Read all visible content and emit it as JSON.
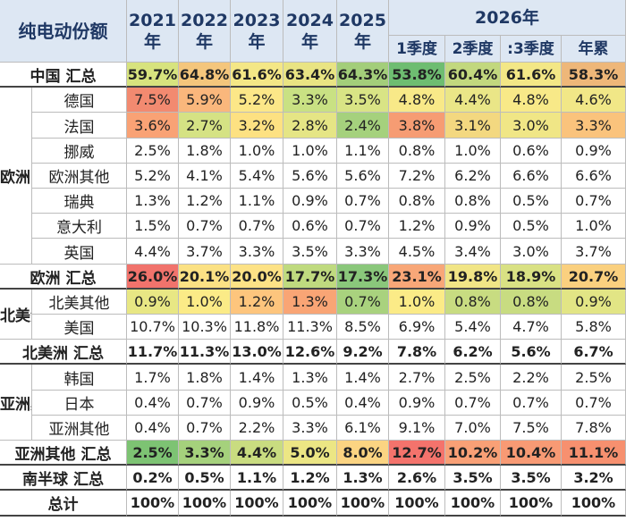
{
  "chart_data": {
    "type": "table",
    "title": "纯电动份额",
    "columns": [
      "2021年",
      "2022年",
      "2023年",
      "2024年",
      "2025年",
      "2026年 1季度",
      "2026年 2季度",
      "2026年 :3季度",
      "2026年 年累"
    ],
    "header": {
      "corner": "纯电动份额",
      "years": [
        {
          "y": "2021",
          "s": "年"
        },
        {
          "y": "2022",
          "s": "年"
        },
        {
          "y": "2023",
          "s": "年"
        },
        {
          "y": "2024",
          "s": "年"
        },
        {
          "y": "2025",
          "s": "年"
        }
      ],
      "year2026": "2026年",
      "quarters": [
        "1季度",
        "2季度",
        ":3季度",
        "年累"
      ]
    },
    "groups": [
      "欧洲",
      "北美洲",
      "亚洲其"
    ],
    "rows": [
      {
        "label": "中国 汇总",
        "kind": "total",
        "values": [
          "59.7%",
          "64.8%",
          "61.6%",
          "63.4%",
          "64.3%",
          "53.8%",
          "60.4%",
          "61.6%",
          "58.3%"
        ],
        "colors": [
          "#d7e37e",
          "#f4c67c",
          "#f4e786",
          "#e9e483",
          "#a3ce7a",
          "#6ebd71",
          "#c2d87e",
          "#f3e786",
          "#eeb779"
        ]
      },
      {
        "label": "德国",
        "kind": "item",
        "values": [
          "7.5%",
          "5.9%",
          "5.2%",
          "3.3%",
          "3.5%",
          "4.8%",
          "4.4%",
          "4.8%",
          "4.6%"
        ],
        "colors": [
          "#f28a70",
          "#fab77c",
          "#fce788",
          "#c9e183",
          "#d9e485",
          "#f8e988",
          "#eae687",
          "#f8e988",
          "#f1e787"
        ]
      },
      {
        "label": "法国",
        "kind": "item",
        "values": [
          "3.6%",
          "2.7%",
          "3.2%",
          "2.8%",
          "2.4%",
          "3.8%",
          "3.1%",
          "3.0%",
          "3.3%"
        ],
        "colors": [
          "#f9a275",
          "#d5e284",
          "#fde182",
          "#e5e585",
          "#a5d17d",
          "#f69c73",
          "#f3d880",
          "#f0e686",
          "#fac37c"
        ]
      },
      {
        "label": "挪威",
        "kind": "item",
        "values": [
          "2.5%",
          "1.8%",
          "1.0%",
          "1.0%",
          "1.1%",
          "0.8%",
          "1.0%",
          "0.6%",
          "0.9%"
        ],
        "colors": []
      },
      {
        "label": "欧洲其他",
        "kind": "item",
        "values": [
          "5.2%",
          "4.1%",
          "5.4%",
          "5.6%",
          "5.6%",
          "7.2%",
          "6.2%",
          "6.6%",
          "6.6%"
        ],
        "colors": []
      },
      {
        "label": "瑞典",
        "kind": "item",
        "values": [
          "1.3%",
          "1.2%",
          "1.1%",
          "0.9%",
          "0.7%",
          "0.8%",
          "0.8%",
          "0.5%",
          "0.7%"
        ],
        "colors": []
      },
      {
        "label": "意大利",
        "kind": "item",
        "values": [
          "1.5%",
          "0.7%",
          "0.7%",
          "0.6%",
          "0.7%",
          "1.2%",
          "0.9%",
          "0.5%",
          "1.0%"
        ],
        "colors": []
      },
      {
        "label": "英国",
        "kind": "item",
        "values": [
          "4.4%",
          "3.7%",
          "3.3%",
          "3.5%",
          "3.3%",
          "4.5%",
          "3.4%",
          "3.0%",
          "3.7%"
        ],
        "colors": []
      },
      {
        "label": "欧洲 汇总",
        "kind": "total",
        "values": [
          "26.0%",
          "20.1%",
          "20.0%",
          "17.7%",
          "17.3%",
          "23.1%",
          "19.8%",
          "18.9%",
          "20.7%"
        ],
        "colors": [
          "#f1736c",
          "#fbe184",
          "#fde286",
          "#bfda7f",
          "#8ac77b",
          "#f8a778",
          "#f1e586",
          "#d9e184",
          "#fad07f"
        ]
      },
      {
        "label": "北美其他",
        "kind": "item",
        "values": [
          "0.9%",
          "1.0%",
          "1.2%",
          "1.3%",
          "0.7%",
          "1.0%",
          "0.8%",
          "0.8%",
          "0.9%"
        ],
        "colors": [
          "#e8e784",
          "#fbeb87",
          "#fdc57d",
          "#f9a575",
          "#a9d27e",
          "#fbeb87",
          "#c8dc81",
          "#c8dc81",
          "#e2e585"
        ]
      },
      {
        "label": "美国",
        "kind": "item",
        "values": [
          "10.7%",
          "10.3%",
          "11.8%",
          "11.3%",
          "8.5%",
          "6.9%",
          "5.4%",
          "4.7%",
          "5.8%"
        ],
        "colors": []
      },
      {
        "label": "北美洲 汇总",
        "kind": "total",
        "values": [
          "11.7%",
          "11.3%",
          "13.0%",
          "12.6%",
          "9.2%",
          "7.8%",
          "6.2%",
          "5.6%",
          "6.7%"
        ],
        "colors": []
      },
      {
        "label": "韩国",
        "kind": "item",
        "values": [
          "1.7%",
          "1.8%",
          "1.4%",
          "1.3%",
          "1.4%",
          "2.7%",
          "2.5%",
          "2.2%",
          "2.5%"
        ],
        "colors": []
      },
      {
        "label": "日本",
        "kind": "item",
        "values": [
          "0.4%",
          "0.7%",
          "0.9%",
          "0.5%",
          "0.4%",
          "0.9%",
          "0.7%",
          "0.7%",
          "0.7%"
        ],
        "colors": []
      },
      {
        "label": "亚洲其他",
        "kind": "item",
        "values": [
          "0.4%",
          "0.7%",
          "2.2%",
          "3.3%",
          "6.1%",
          "9.1%",
          "7.0%",
          "7.5%",
          "7.8%"
        ],
        "colors": []
      },
      {
        "label": "亚洲其他 汇总",
        "kind": "total",
        "values": [
          "2.5%",
          "3.3%",
          "4.4%",
          "5.0%",
          "8.0%",
          "12.7%",
          "10.2%",
          "10.4%",
          "11.1%"
        ],
        "colors": [
          "#7dc373",
          "#a5d17c",
          "#c9dc80",
          "#ece684",
          "#fbd482",
          "#f4736c",
          "#f9a076",
          "#f89a74",
          "#f7906f"
        ]
      },
      {
        "label": "南半球 汇总",
        "kind": "total",
        "values": [
          "0.2%",
          "0.5%",
          "1.1%",
          "1.2%",
          "1.3%",
          "2.6%",
          "3.5%",
          "3.5%",
          "3.2%"
        ],
        "colors": []
      },
      {
        "label": "总计",
        "kind": "grand",
        "values": [
          "100%",
          "100%",
          "100%",
          "100%",
          "100%",
          "100%",
          "100%",
          "100%",
          "100%"
        ],
        "colors": []
      }
    ]
  },
  "colors": {
    "header_bg": "#dde7f3",
    "header_text": "#1f3864",
    "border": "#bcbcbc"
  }
}
